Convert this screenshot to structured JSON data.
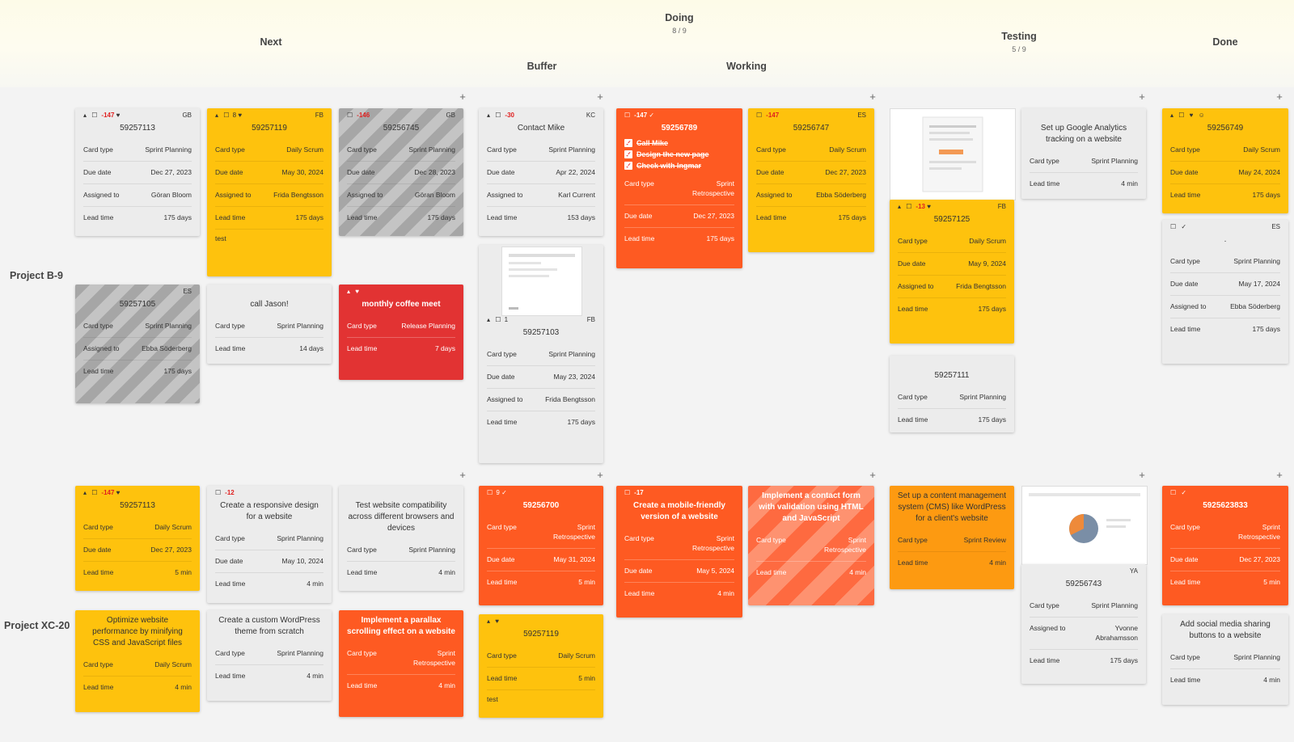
{
  "board": {
    "columns": {
      "next": {
        "label": "Next"
      },
      "doing": {
        "label": "Doing",
        "count": "8 / 9"
      },
      "buffer": {
        "label": "Buffer"
      },
      "working": {
        "label": "Working"
      },
      "testing": {
        "label": "Testing",
        "count": "5 / 9"
      },
      "done": {
        "label": "Done"
      }
    },
    "lanes": {
      "b9": "Project B-9",
      "xc20": "Project XC-20"
    },
    "add_symbol": "+"
  },
  "labels": {
    "card_type": "Card type",
    "due_date": "Due date",
    "assigned_to": "Assigned to",
    "lead_time": "Lead time"
  },
  "cards": {
    "c1": {
      "title": "59257113",
      "neg": "-147",
      "init": "GB",
      "type": "Sprint Planning",
      "due": "Dec 27, 2023",
      "assigned": "Göran Bloom",
      "lead": "175 days"
    },
    "c2": {
      "title": "59257119",
      "num": "8",
      "init": "FB",
      "type": "Daily Scrum",
      "due": "May 30, 2024",
      "assigned": "Frida Bengtsson",
      "lead": "175 days",
      "note": "test"
    },
    "c3": {
      "title": "59256745",
      "neg": "-146",
      "init": "GB",
      "type": "Sprint Planning",
      "due": "Dec 28, 2023",
      "assigned": "Göran Bloom",
      "lead": "175 days"
    },
    "c4": {
      "title": "59257105",
      "init": "ES",
      "type": "Sprint Planning",
      "assigned": "Ebba Söderberg",
      "lead": "175 days"
    },
    "c5": {
      "title": "call Jason!",
      "type": "Sprint Planning",
      "lead": "14 days"
    },
    "c6": {
      "title": "monthly coffee meet",
      "type": "Release Planning",
      "lead": "7 days"
    },
    "c7": {
      "title": "Contact Mike",
      "neg": "-30",
      "init": "KC",
      "type": "Sprint Planning",
      "due": "Apr 22, 2024",
      "assigned": "Karl Current",
      "lead": "153 days"
    },
    "c8": {
      "title": "59257103",
      "num": "1",
      "init": "FB",
      "type": "Sprint Planning",
      "due": "May 23, 2024",
      "assigned": "Frida Bengtsson",
      "lead": "175 days"
    },
    "c9": {
      "title": "59256789",
      "neg": "-147",
      "tasks": [
        "Call Mike",
        "Design the new page",
        "Check with Ingmar"
      ],
      "type": "Sprint Retrospective",
      "due": "Dec 27, 2023",
      "lead": "175 days"
    },
    "c10": {
      "title": "59256747",
      "neg": "-147",
      "init": "ES",
      "type": "Daily Scrum",
      "due": "Dec 27, 2023",
      "assigned": "Ebba Söderberg",
      "lead": "175 days"
    },
    "c11": {
      "title": "59257125",
      "neg": "-13",
      "init": "FB",
      "type": "Daily Scrum",
      "due": "May 9, 2024",
      "assigned": "Frida Bengtsson",
      "lead": "175 days"
    },
    "c12": {
      "title": "59257111",
      "type": "Sprint Planning",
      "lead": "175 days"
    },
    "c13": {
      "title": "Set up Google Analytics tracking on a website",
      "type": "Sprint Planning",
      "lead": "4 min"
    },
    "c14": {
      "title": "59256749",
      "type": "Daily Scrum",
      "due": "May 24, 2024",
      "lead": "175 days"
    },
    "c15": {
      "title": ".",
      "init": "ES",
      "type": "Sprint Planning",
      "due": "May 17, 2024",
      "assigned": "Ebba Söderberg",
      "lead": "175 days"
    },
    "c16": {
      "title": "59257113",
      "neg": "-147",
      "type": "Daily Scrum",
      "due": "Dec 27, 2023",
      "lead": "5 min"
    },
    "c17": {
      "title": "Create a responsive design for a website",
      "neg": "-12",
      "type": "Sprint Planning",
      "due": "May 10, 2024",
      "lead": "4 min"
    },
    "c18": {
      "title": "Test website compatibility across different browsers and devices",
      "type": "Sprint Planning",
      "lead": "4 min"
    },
    "c19": {
      "title": "59256700",
      "num": "9",
      "type": "Sprint Retrospective",
      "due": "May 31, 2024",
      "lead": "5 min"
    },
    "c20": {
      "title": "Create a mobile-friendly version of a website",
      "neg": "-17",
      "type": "Sprint Retrospective",
      "due": "May 5, 2024",
      "lead": "4 min"
    },
    "c21": {
      "title": "Implement a contact form with validation using HTML and JavaScript",
      "type": "Sprint Retrospective",
      "lead": "4 min"
    },
    "c22": {
      "title": "Set up a content management system (CMS) like WordPress for a client's website",
      "type": "Sprint Review",
      "lead": "4 min"
    },
    "c23": {
      "title": "59256743",
      "init": "YA",
      "type": "Sprint Planning",
      "assigned": "Yvonne Abrahamsson",
      "lead": "175 days"
    },
    "c24": {
      "title": "5925623833",
      "type": "Sprint Retrospective",
      "due": "Dec 27, 2023",
      "lead": "5 min"
    },
    "c25": {
      "title": "Optimize website performance by minifying CSS and JavaScript files",
      "type": "Daily Scrum",
      "lead": "4 min"
    },
    "c26": {
      "title": "Create a custom WordPress theme from scratch",
      "type": "Sprint Planning",
      "lead": "4 min"
    },
    "c27": {
      "title": "Implement a parallax scrolling effect on a website",
      "type": "Sprint Retrospective",
      "lead": "4 min"
    },
    "c28": {
      "title": "59257119",
      "type": "Daily Scrum",
      "lead": "5 min",
      "note": "test"
    },
    "c29": {
      "title": "Add social media sharing buttons to a website",
      "type": "Sprint Planning",
      "lead": "4 min"
    }
  }
}
